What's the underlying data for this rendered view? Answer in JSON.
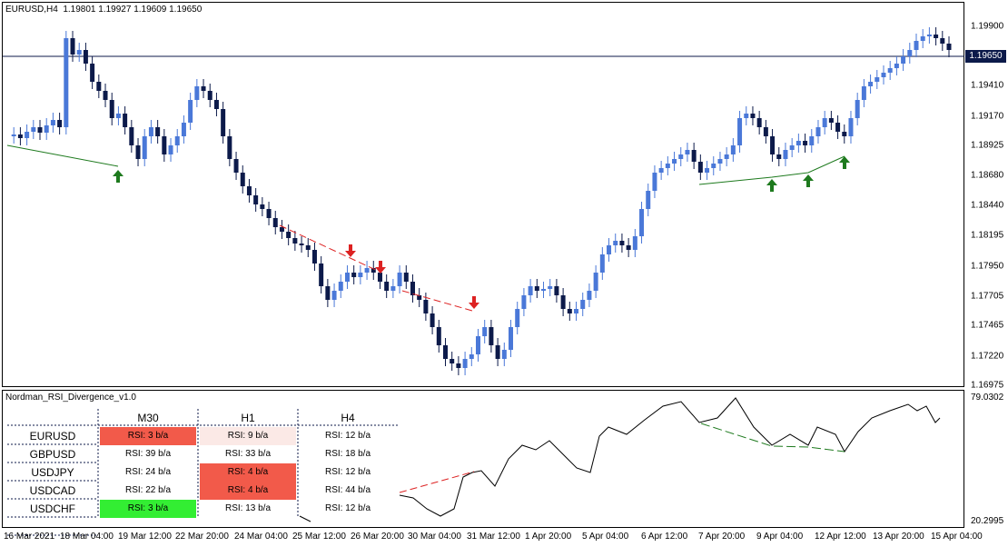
{
  "chart_title": "EURUSD,H4  1.19801 1.19927 1.19609 1.19650",
  "current_price": "1.19650",
  "indicator_title": "Nordman_RSI_Divergence_v1.0",
  "indicator_max": "79.0302",
  "indicator_min": "20.2995",
  "colors": {
    "bull": "#4a78d8",
    "bear": "#0c1a4a",
    "bull_div": "#1e7a1e",
    "bear_div": "#dd2222",
    "strong_bear": "#f25a4a",
    "soft_bear": "#fbe9e6",
    "strong_bull": "#33ee33"
  },
  "y_axis_labels": [
    "1.19900",
    "1.19410",
    "1.19170",
    "1.18925",
    "1.18680",
    "1.18440",
    "1.18195",
    "1.17950",
    "1.17705",
    "1.17465",
    "1.17220",
    "1.16975"
  ],
  "x_axis_labels": [
    "16 Mar 2021",
    "18 Mar 04:00",
    "19 Mar 12:00",
    "22 Mar 20:00",
    "24 Mar 04:00",
    "25 Mar 12:00",
    "26 Mar 20:00",
    "30 Mar 04:00",
    "31 Mar 12:00",
    "1 Apr 20:00",
    "5 Apr 04:00",
    "6 Apr 12:00",
    "7 Apr 20:00",
    "9 Apr 04:00",
    "12 Apr 12:00",
    "13 Apr 20:00",
    "15 Apr 04:00"
  ],
  "rsi_table": {
    "headers": [
      "M30",
      "H1",
      "H4"
    ],
    "rows": [
      {
        "pair": "EURUSD",
        "m30": "RSI: 3 b/a",
        "h1": "RSI: 9 b/a",
        "h4": "RSI: 12 b/a"
      },
      {
        "pair": "GBPUSD",
        "m30": "RSI: 39 b/a",
        "h1": "RSI: 33 b/a",
        "h4": "RSI: 18 b/a"
      },
      {
        "pair": "USDJPY",
        "m30": "RSI: 24 b/a",
        "h1": "RSI: 4 b/a",
        "h4": "RSI: 12 b/a"
      },
      {
        "pair": "USDCAD",
        "m30": "RSI: 22 b/a",
        "h1": "RSI: 4 b/a",
        "h4": "RSI: 44 b/a"
      },
      {
        "pair": "USDCHF",
        "m30": "RSI: 3 b/a",
        "h1": "RSI: 13 b/a",
        "h4": "RSI: 12 b/a"
      }
    ]
  }
}
